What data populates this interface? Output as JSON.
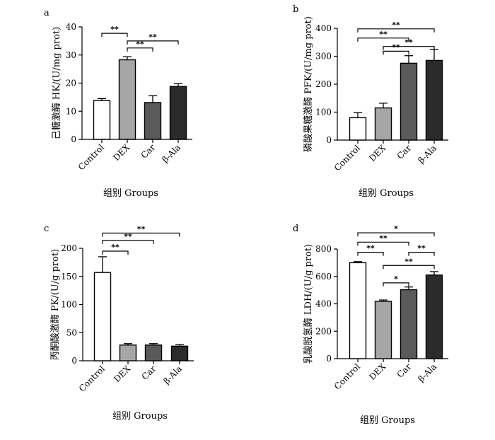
{
  "chart_data": [
    {
      "panel": "a",
      "type": "bar",
      "ylabel": "己糖激酶 HK/(U/mg prot)",
      "xlabel": "组别  Groups",
      "categories": [
        "Control",
        "DEX",
        "Car",
        "β-Ala"
      ],
      "values": [
        13.8,
        28.3,
        13.1,
        18.8
      ],
      "errors": [
        0.7,
        1.1,
        2.4,
        1.0
      ],
      "colors": [
        "#ffffff",
        "#a6a6a6",
        "#5a5a5a",
        "#2b2b2b"
      ],
      "ylim": [
        0,
        40
      ],
      "yticks": [
        0,
        10,
        20,
        30,
        40
      ],
      "significance": [
        {
          "from": 0,
          "to": 1,
          "label": "**",
          "y": 37.7
        },
        {
          "from": 1,
          "to": 2,
          "label": "**",
          "y": 32.5
        },
        {
          "from": 1,
          "to": 3,
          "label": "**",
          "y": 35.0
        }
      ]
    },
    {
      "panel": "b",
      "type": "bar",
      "ylabel": "磷酸果糖激酶 PFK/(U/mg prot)",
      "xlabel": "组别  Groups",
      "categories": [
        "Control",
        "DEX",
        "Car",
        "β-Ala"
      ],
      "values": [
        80,
        115,
        275,
        285
      ],
      "errors": [
        18,
        17,
        27,
        40
      ],
      "colors": [
        "#ffffff",
        "#a6a6a6",
        "#5a5a5a",
        "#2b2b2b"
      ],
      "ylim": [
        0,
        400
      ],
      "yticks": [
        0,
        100,
        200,
        300,
        400
      ],
      "significance": [
        {
          "from": 0,
          "to": 3,
          "label": "**",
          "y": 398
        },
        {
          "from": 0,
          "to": 2,
          "label": "**",
          "y": 365
        },
        {
          "from": 1,
          "to": 3,
          "label": "**",
          "y": 335
        },
        {
          "from": 1,
          "to": 2,
          "label": "**",
          "y": 318
        }
      ]
    },
    {
      "panel": "c",
      "type": "bar",
      "ylabel": "丙酮酸激酶 PK/(U/g prot)",
      "xlabel": "组别  Groups",
      "categories": [
        "Control",
        "DEX",
        "Car",
        "β-Ala"
      ],
      "values": [
        157,
        28,
        28,
        26
      ],
      "errors": [
        28,
        2.5,
        2.5,
        3
      ],
      "colors": [
        "#ffffff",
        "#a6a6a6",
        "#5a5a5a",
        "#2b2b2b"
      ],
      "ylim": [
        0,
        200
      ],
      "yticks": [
        0,
        50,
        100,
        150,
        200
      ],
      "significance": [
        {
          "from": 0,
          "to": 3,
          "label": "**",
          "y": 227
        },
        {
          "from": 0,
          "to": 2,
          "label": "**",
          "y": 214
        },
        {
          "from": 0,
          "to": 1,
          "label": "**",
          "y": 195
        }
      ]
    },
    {
      "panel": "d",
      "type": "bar",
      "ylabel": "乳酸脱氢酶 LDH/(U/g prot)",
      "xlabel": "组别  Groups",
      "categories": [
        "Control",
        "DEX",
        "Car",
        "β-Ala"
      ],
      "values": [
        700,
        418,
        503,
        610
      ],
      "errors": [
        8,
        10,
        20,
        25
      ],
      "colors": [
        "#ffffff",
        "#a6a6a6",
        "#5a5a5a",
        "#2b2b2b"
      ],
      "ylim": [
        0,
        800
      ],
      "yticks": [
        0,
        200,
        400,
        600,
        800
      ],
      "significance": [
        {
          "from": 0,
          "to": 3,
          "label": "*",
          "y": 918
        },
        {
          "from": 0,
          "to": 2,
          "label": "**",
          "y": 850
        },
        {
          "from": 0,
          "to": 1,
          "label": "**",
          "y": 776
        },
        {
          "from": 2,
          "to": 3,
          "label": "**",
          "y": 776
        },
        {
          "from": 1,
          "to": 3,
          "label": "**",
          "y": 680
        },
        {
          "from": 1,
          "to": 2,
          "label": "*",
          "y": 553
        }
      ]
    }
  ]
}
